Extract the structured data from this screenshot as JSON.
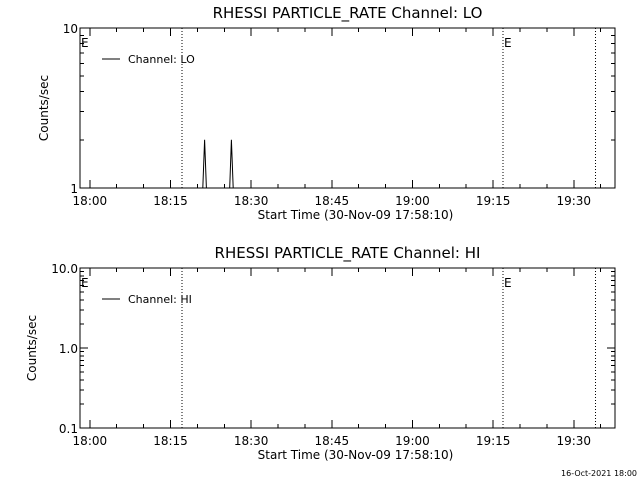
{
  "footer": {
    "timestamp": "16-Oct-2021 18:00"
  },
  "chart_data": [
    {
      "type": "line",
      "title": "RHESSI PARTICLE_RATE Channel: LO",
      "xlabel": "Start Time (30-Nov-09 17:58:10)",
      "ylabel": "Counts/sec",
      "y_scale": "log",
      "ylim": [
        1,
        10
      ],
      "y_ticks": [
        1,
        10
      ],
      "y_tick_labels": [
        "1",
        "10"
      ],
      "xlim": [
        "17:58:10",
        "19:37:40"
      ],
      "x_ticks": [
        "18:00",
        "18:15",
        "18:30",
        "18:45",
        "19:00",
        "19:15",
        "19:30"
      ],
      "x_tick_labels": [
        "18:00",
        "18:15",
        "18:30",
        "18:45",
        "19:00",
        "19:15",
        "19:30"
      ],
      "legend": {
        "placement": "top-left",
        "entries": [
          "Channel: LO"
        ]
      },
      "event_lines": [
        {
          "time": "18:17:10",
          "label": ""
        },
        {
          "time": "19:16:50",
          "label": "E"
        },
        {
          "time": "19:34:00",
          "label": ""
        }
      ],
      "edge_labels": [
        "E"
      ],
      "series": [
        {
          "name": "Channel: LO",
          "x": [
            "18:20:30",
            "18:21:00",
            "18:21:20",
            "18:21:40",
            "18:22:00",
            "18:25:30",
            "18:26:00",
            "18:26:20",
            "18:26:40",
            "18:27:00"
          ],
          "y": [
            1,
            1,
            2,
            1,
            1,
            1,
            1,
            2,
            1,
            1
          ]
        }
      ]
    },
    {
      "type": "line",
      "title": "RHESSI PARTICLE_RATE Channel: HI",
      "xlabel": "Start Time (30-Nov-09 17:58:10)",
      "ylabel": "Counts/sec",
      "y_scale": "log",
      "ylim": [
        0.1,
        10
      ],
      "y_ticks": [
        0.1,
        1,
        10
      ],
      "y_tick_labels": [
        "0.1",
        "1.0",
        "10.0"
      ],
      "xlim": [
        "17:58:10",
        "19:37:40"
      ],
      "x_ticks": [
        "18:00",
        "18:15",
        "18:30",
        "18:45",
        "19:00",
        "19:15",
        "19:30"
      ],
      "x_tick_labels": [
        "18:00",
        "18:15",
        "18:30",
        "18:45",
        "19:00",
        "19:15",
        "19:30"
      ],
      "legend": {
        "placement": "top-left",
        "entries": [
          "Channel: HI"
        ]
      },
      "event_lines": [
        {
          "time": "18:17:10",
          "label": ""
        },
        {
          "time": "19:16:50",
          "label": "E"
        },
        {
          "time": "19:34:00",
          "label": ""
        }
      ],
      "edge_labels": [
        "E"
      ],
      "series": [
        {
          "name": "Channel: HI",
          "x": [],
          "y": []
        }
      ]
    }
  ]
}
